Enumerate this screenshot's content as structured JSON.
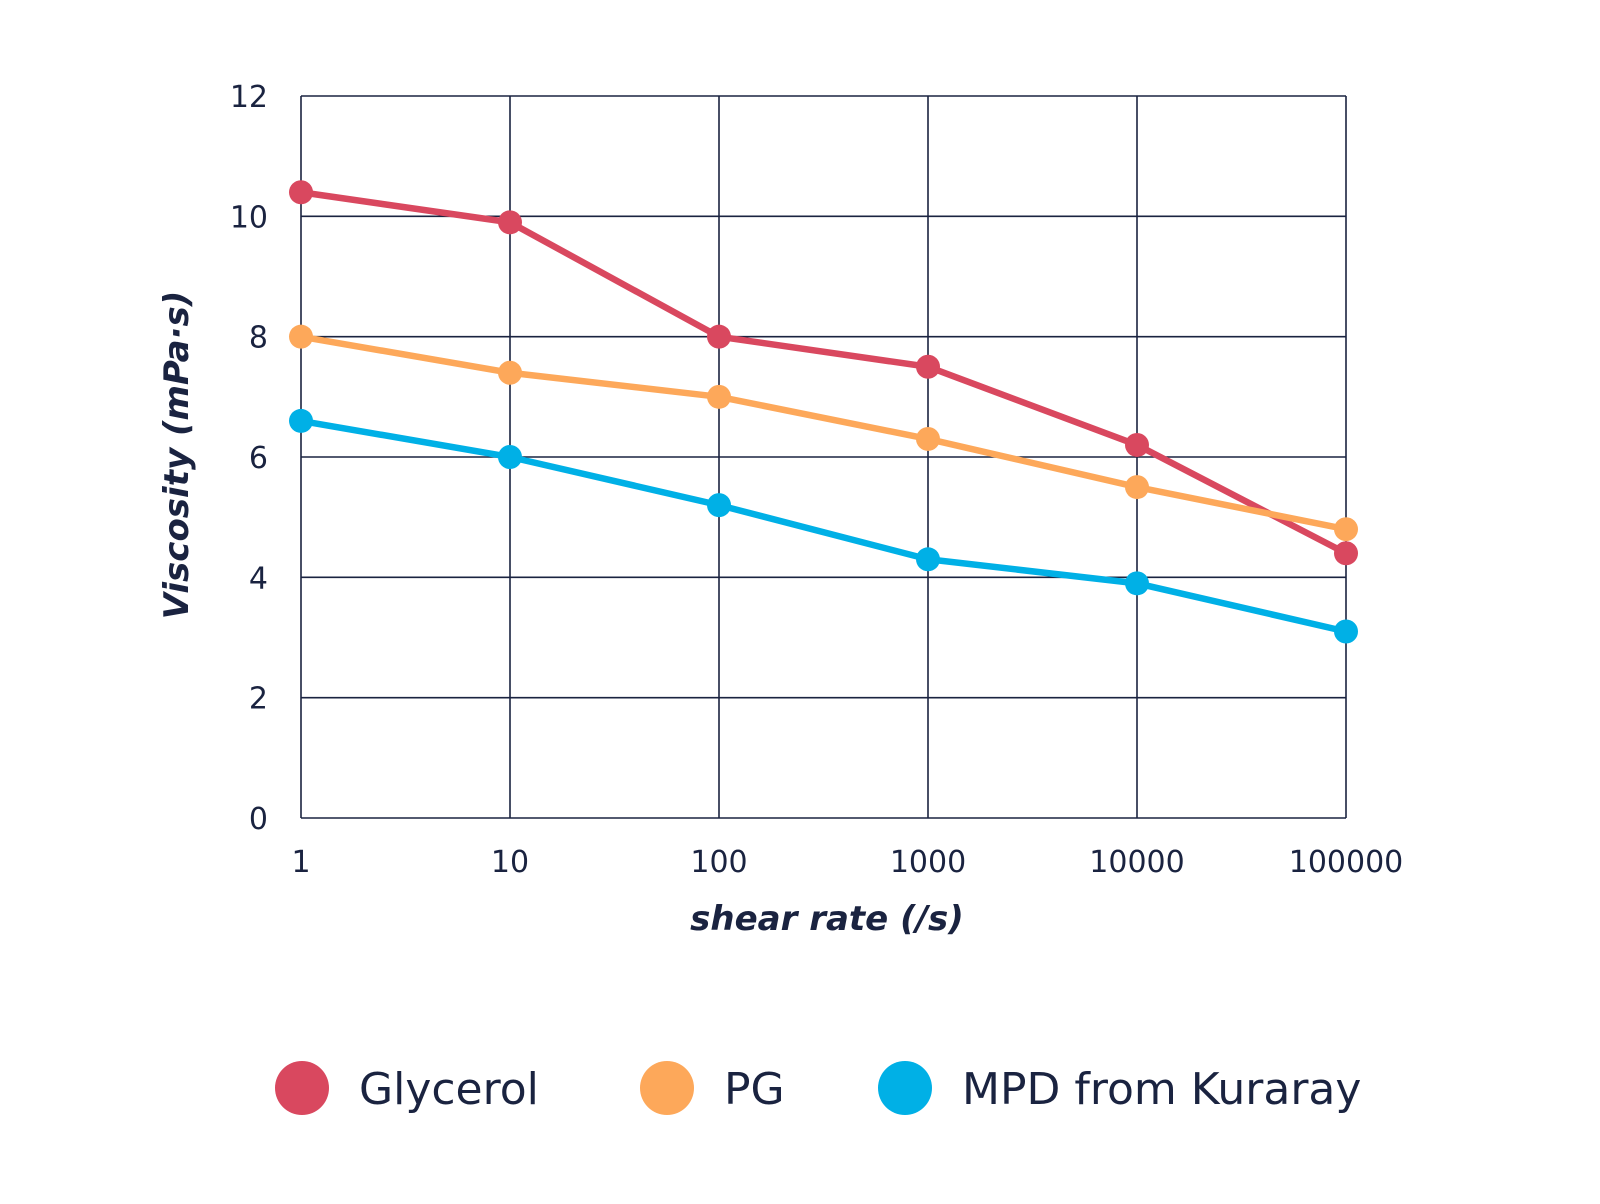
{
  "chart_data": {
    "type": "line",
    "title": "",
    "xlabel": "shear rate (/s)",
    "ylabel": "Viscosity (mPa·s)",
    "x_scale": "log",
    "categories": [
      "1",
      "10",
      "100",
      "1000",
      "10000",
      "100000"
    ],
    "ylim": [
      0,
      12
    ],
    "yticks": [
      "0",
      "2",
      "4",
      "6",
      "8",
      "10",
      "12"
    ],
    "grid": true,
    "legend_position": "bottom",
    "series": [
      {
        "name": "Glycerol",
        "color": "#d9485f",
        "values": [
          10.4,
          9.9,
          8.0,
          7.5,
          6.2,
          4.4
        ]
      },
      {
        "name": "PG",
        "color": "#fda85a",
        "values": [
          8.0,
          7.4,
          7.0,
          6.3,
          5.5,
          4.8
        ]
      },
      {
        "name": "MPD from Kuraray",
        "color": "#00b0e6",
        "values": [
          6.6,
          6.0,
          5.2,
          4.3,
          3.9,
          3.1
        ]
      }
    ]
  },
  "colors": {
    "grid": "#1a2340",
    "text": "#1a2340"
  }
}
